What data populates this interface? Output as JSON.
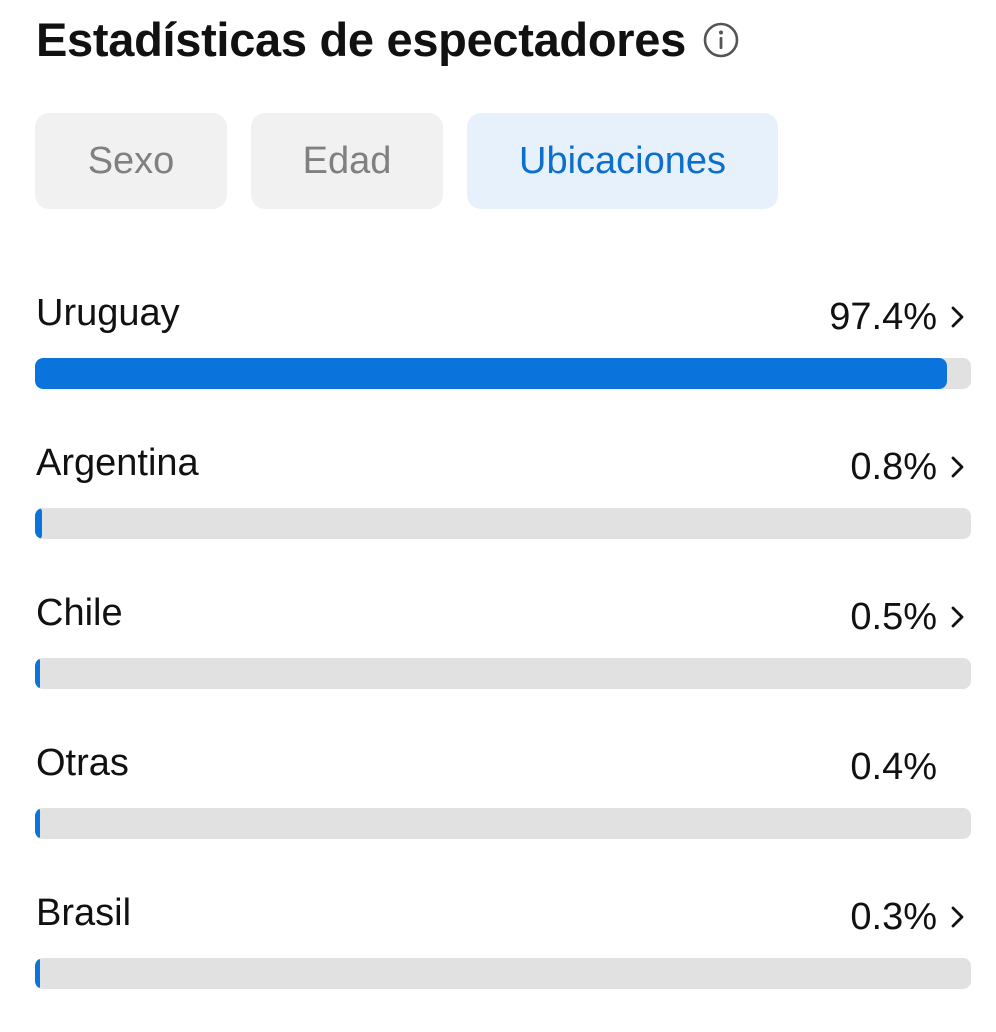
{
  "header": {
    "title": "Estadísticas de espectadores",
    "info_icon": "info-icon"
  },
  "tabs": [
    {
      "label": "Sexo",
      "active": false
    },
    {
      "label": "Edad",
      "active": false
    },
    {
      "label": "Ubicaciones",
      "active": true
    }
  ],
  "locations": [
    {
      "name": "Uruguay",
      "value_label": "97.4%",
      "percent": 97.4,
      "has_chevron": true
    },
    {
      "name": "Argentina",
      "value_label": "0.8%",
      "percent": 0.8,
      "has_chevron": true
    },
    {
      "name": "Chile",
      "value_label": "0.5%",
      "percent": 0.5,
      "has_chevron": true
    },
    {
      "name": "Otras",
      "value_label": "0.4%",
      "percent": 0.4,
      "has_chevron": false
    },
    {
      "name": "Brasil",
      "value_label": "0.3%",
      "percent": 0.3,
      "has_chevron": true
    }
  ],
  "colors": {
    "accent": "#0b74dc",
    "active_tab_bg": "#e6f1fb",
    "active_tab_text": "#0b6fcb",
    "inactive_tab_bg": "#f1f1f2",
    "inactive_tab_text": "#808080",
    "track": "#e1e1e1"
  }
}
